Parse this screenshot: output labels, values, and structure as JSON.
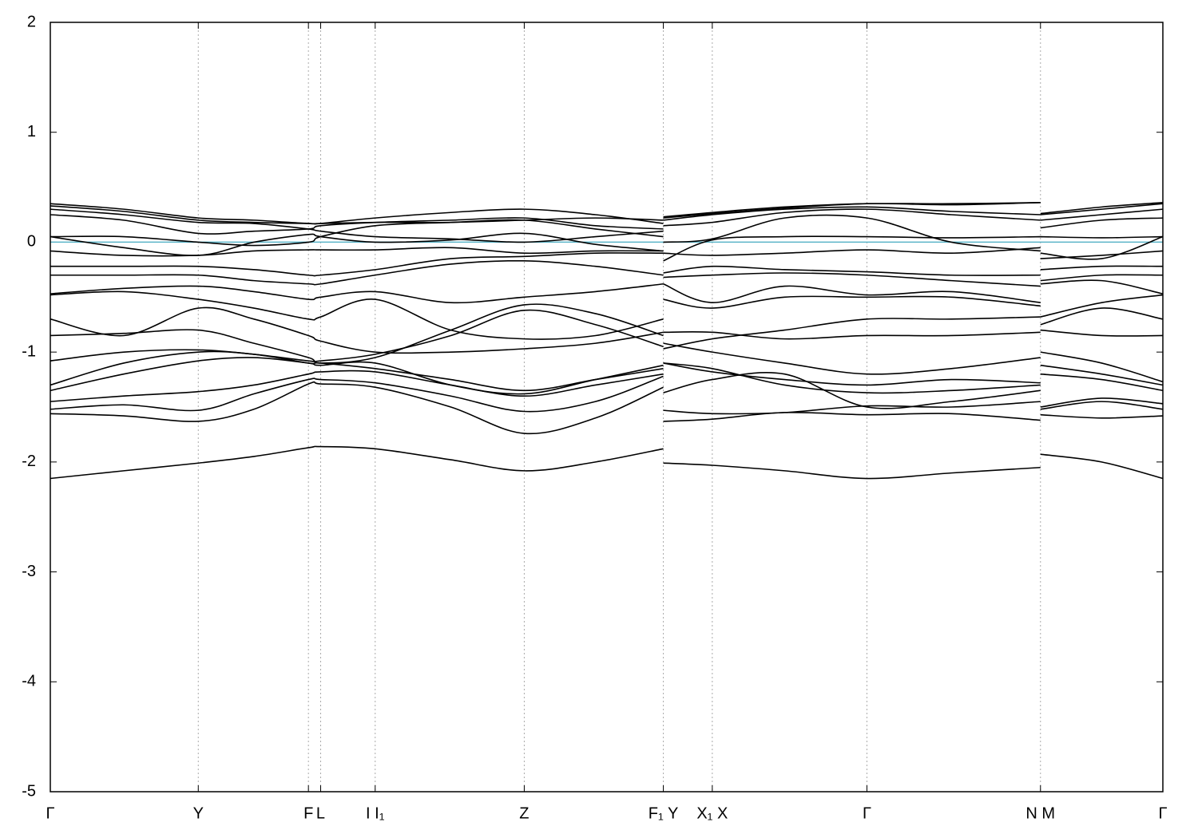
{
  "chart_data": {
    "type": "line",
    "x": [
      0,
      0.066,
      0.133,
      0.183,
      0.232,
      0.243,
      0.292,
      0.36,
      0.426,
      0.49,
      0.551,
      0.551,
      0.551,
      0.595,
      0.66,
      0.734,
      0.81,
      0.89,
      0.89,
      0.89,
      0.945,
      1
    ],
    "xlim": [
      0,
      1
    ],
    "xticks": [
      {
        "value": 0,
        "label": "Γ"
      },
      {
        "value": 0.133,
        "label": "Y"
      },
      {
        "value": 0.232,
        "label": "F"
      },
      {
        "value": 0.243,
        "label": "L"
      },
      {
        "value": 0.292,
        "label": "I I₁"
      },
      {
        "value": 0.426,
        "label": "Z"
      },
      {
        "value": 0.551,
        "label": "F₁ Y"
      },
      {
        "value": 0.595,
        "label": "X₁ X"
      },
      {
        "value": 0.734,
        "label": "Γ"
      },
      {
        "value": 0.89,
        "label": "N M"
      },
      {
        "value": 1,
        "label": "Γ"
      }
    ],
    "ylim": [
      -5,
      2
    ],
    "yticks": [
      -5,
      -4,
      -3,
      -2,
      -1,
      0,
      1,
      2
    ],
    "grid": "x",
    "color": "#000000",
    "hline": {
      "value": 0,
      "color": "#5ab4c8"
    },
    "series": [
      {
        "values": [
          -2.15,
          -2.08,
          -2.01,
          -1.95,
          -1.87,
          -1.86,
          -1.88,
          -1.98,
          -2.08,
          -2.0,
          -1.88,
          null,
          -2.01,
          -2.03,
          -2.08,
          -2.15,
          -2.1,
          -2.05,
          null,
          -1.93,
          -2.0,
          -2.15
        ]
      },
      {
        "values": [
          -1.56,
          -1.58,
          -1.63,
          -1.52,
          -1.29,
          -1.29,
          -1.32,
          -1.5,
          -1.74,
          -1.6,
          -1.32,
          null,
          -1.63,
          -1.61,
          -1.55,
          -1.57,
          -1.56,
          -1.62,
          null,
          -1.57,
          -1.6,
          -1.58
        ]
      },
      {
        "values": [
          -1.52,
          -1.48,
          -1.53,
          -1.38,
          -1.25,
          -1.25,
          -1.28,
          -1.4,
          -1.54,
          -1.45,
          -1.22,
          null,
          -1.53,
          -1.56,
          -1.55,
          -1.49,
          -1.5,
          -1.45,
          null,
          -1.52,
          -1.45,
          -1.52
        ]
      },
      {
        "values": [
          -1.45,
          -1.4,
          -1.36,
          -1.3,
          -1.2,
          -1.18,
          -1.18,
          -1.3,
          -1.4,
          -1.3,
          -1.2,
          null,
          -1.37,
          -1.25,
          -1.2,
          -1.5,
          -1.45,
          -1.35,
          null,
          -1.5,
          -1.42,
          -1.47
        ]
      },
      {
        "values": [
          -1.35,
          -1.2,
          -1.08,
          -1.05,
          -1.1,
          -1.12,
          -1.1,
          -1.3,
          -1.38,
          -1.25,
          -1.12,
          null,
          -1.1,
          -1.15,
          -1.3,
          -1.37,
          -1.35,
          -1.3,
          null,
          -1.2,
          -1.25,
          -1.35
        ]
      },
      {
        "values": [
          -1.3,
          -1.1,
          -1.0,
          -1.02,
          -1.1,
          -1.1,
          -1.15,
          -1.25,
          -1.35,
          -1.25,
          -1.15,
          null,
          -1.1,
          -1.18,
          -1.25,
          -1.3,
          -1.25,
          -1.28,
          null,
          -1.12,
          -1.2,
          -1.3
        ]
      },
      {
        "values": [
          -1.08,
          -1.0,
          -0.98,
          -1.02,
          -1.08,
          -1.08,
          -1.02,
          -0.85,
          -0.62,
          -0.75,
          -0.95,
          null,
          -0.92,
          -1.0,
          -1.1,
          -1.2,
          -1.15,
          -1.05,
          null,
          -1.0,
          -1.1,
          -1.27
        ]
      },
      {
        "values": [
          -0.85,
          -0.83,
          -0.8,
          -0.92,
          -1.05,
          -1.1,
          -1.05,
          -0.8,
          -0.57,
          -0.65,
          -0.85,
          null,
          -0.97,
          -0.88,
          -0.8,
          -0.7,
          -0.7,
          -0.68,
          null,
          -0.8,
          -0.85,
          -0.85
        ]
      },
      {
        "values": [
          -0.7,
          -0.85,
          -0.6,
          -0.7,
          -0.85,
          -0.9,
          -1.0,
          -1.0,
          -0.97,
          -0.92,
          -0.82,
          null,
          -0.82,
          -0.82,
          -0.88,
          -0.85,
          -0.85,
          -0.82,
          null,
          -0.75,
          -0.6,
          -0.7
        ]
      },
      {
        "values": [
          -0.48,
          -0.45,
          -0.52,
          -0.6,
          -0.7,
          -0.68,
          -0.52,
          -0.8,
          -0.88,
          -0.85,
          -0.7,
          null,
          -0.52,
          -0.6,
          -0.5,
          -0.5,
          -0.5,
          -0.58,
          null,
          -0.68,
          -0.55,
          -0.48
        ]
      },
      {
        "values": [
          -0.47,
          -0.42,
          -0.4,
          -0.45,
          -0.52,
          -0.5,
          -0.45,
          -0.55,
          -0.5,
          -0.45,
          -0.38,
          null,
          -0.38,
          -0.55,
          -0.4,
          -0.48,
          -0.45,
          -0.55,
          null,
          -0.38,
          -0.35,
          -0.47
        ]
      },
      {
        "values": [
          -0.3,
          -0.3,
          -0.3,
          -0.35,
          -0.38,
          -0.38,
          -0.3,
          -0.2,
          -0.17,
          -0.22,
          -0.3,
          null,
          -0.32,
          -0.3,
          -0.28,
          -0.3,
          -0.35,
          -0.4,
          null,
          -0.35,
          -0.3,
          -0.3
        ]
      },
      {
        "values": [
          -0.22,
          -0.22,
          -0.22,
          -0.25,
          -0.3,
          -0.3,
          -0.25,
          -0.15,
          -0.13,
          -0.1,
          -0.1,
          null,
          -0.28,
          -0.22,
          -0.25,
          -0.27,
          -0.3,
          -0.3,
          null,
          -0.25,
          -0.22,
          -0.22
        ]
      },
      {
        "values": [
          -0.08,
          -0.12,
          -0.12,
          -0.08,
          -0.07,
          -0.07,
          -0.07,
          -0.05,
          -0.1,
          -0.08,
          -0.08,
          null,
          -0.1,
          -0.12,
          -0.1,
          -0.07,
          -0.1,
          -0.05,
          null,
          -0.15,
          -0.12,
          -0.08
        ]
      },
      {
        "values": [
          0.05,
          -0.05,
          -0.12,
          0.0,
          0.07,
          0.05,
          0.0,
          0.02,
          0.08,
          -0.02,
          -0.08,
          null,
          -0.17,
          0.02,
          0.05,
          0.05,
          0.04,
          0.05,
          null,
          0.05,
          0.04,
          0.05
        ]
      },
      {
        "values": [
          0.05,
          0.05,
          0.0,
          -0.03,
          0.0,
          0.05,
          0.15,
          0.18,
          0.2,
          0.12,
          0.05,
          null,
          0.0,
          0.03,
          0.22,
          0.22,
          0.0,
          -0.08,
          null,
          -0.1,
          -0.15,
          0.05
        ]
      },
      {
        "values": [
          0.25,
          0.2,
          0.08,
          0.1,
          0.12,
          0.15,
          0.18,
          0.2,
          0.22,
          0.15,
          0.12,
          null,
          0.15,
          0.18,
          0.27,
          0.3,
          0.25,
          0.2,
          null,
          0.13,
          0.2,
          0.22
        ]
      },
      {
        "values": [
          0.3,
          0.25,
          0.18,
          0.17,
          0.12,
          0.1,
          0.05,
          0.03,
          0.0,
          0.05,
          0.1,
          null,
          0.2,
          0.25,
          0.3,
          0.32,
          0.28,
          0.25,
          null,
          0.2,
          0.25,
          0.3
        ]
      },
      {
        "values": [
          0.33,
          0.28,
          0.2,
          0.18,
          0.17,
          0.17,
          0.22,
          0.27,
          0.3,
          0.25,
          0.17,
          null,
          0.22,
          0.26,
          0.31,
          0.35,
          0.34,
          0.36,
          null,
          0.25,
          0.3,
          0.35
        ]
      },
      {
        "values": [
          0.35,
          0.3,
          0.22,
          0.2,
          0.17,
          0.17,
          0.18,
          0.18,
          0.2,
          0.22,
          0.2,
          null,
          0.23,
          0.27,
          0.32,
          0.35,
          0.35,
          0.36,
          null,
          0.26,
          0.32,
          0.36
        ]
      }
    ]
  }
}
